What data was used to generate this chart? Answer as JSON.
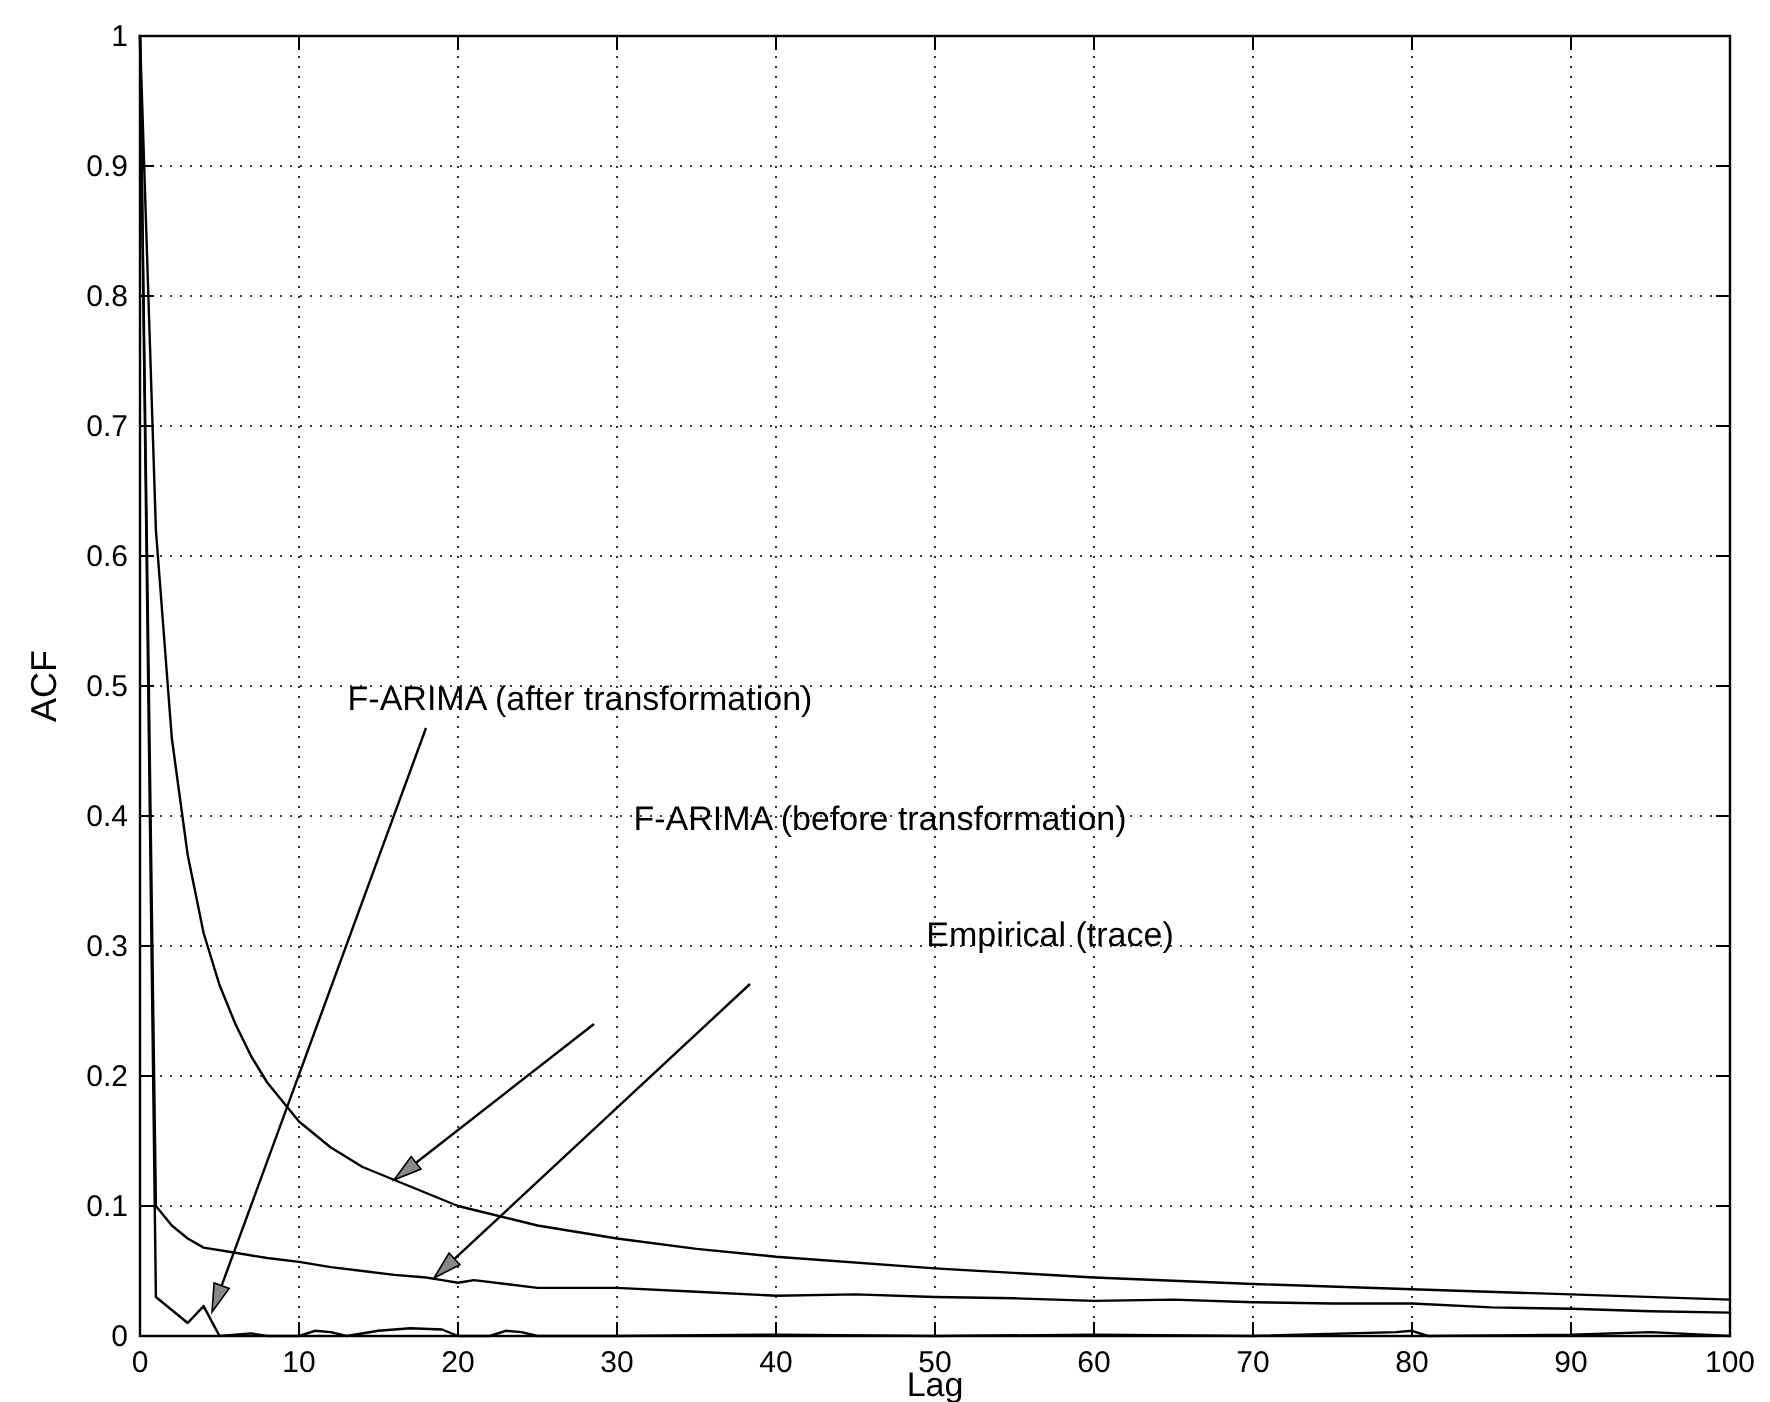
{
  "chart_data": {
    "type": "line",
    "xlabel": "Lag",
    "ylabel": "ACF",
    "xlim": [
      0,
      100
    ],
    "ylim": [
      0,
      1
    ],
    "xticks": [
      0,
      10,
      20,
      30,
      40,
      50,
      60,
      70,
      80,
      90,
      100
    ],
    "yticks": [
      0,
      {
        "value": 0.1,
        "label": "0.1"
      },
      {
        "value": 0.2,
        "label": "0.2"
      },
      {
        "value": 0.3,
        "label": "0.3"
      },
      {
        "value": 0.4,
        "label": "0.4"
      },
      {
        "value": 0.5,
        "label": "0.5"
      },
      {
        "value": 0.6,
        "label": "0.6"
      },
      {
        "value": 0.7,
        "label": "0.7"
      },
      {
        "value": 0.8,
        "label": "0.8"
      },
      {
        "value": 0.9,
        "label": "0.9"
      },
      1
    ],
    "grid": true,
    "line_style": "solid",
    "series": [
      {
        "color": "#000000",
        "x": [
          0,
          1,
          2,
          3,
          4,
          5,
          6,
          7,
          8,
          10,
          12,
          14,
          16,
          18,
          20,
          25,
          30,
          35,
          40,
          50,
          60,
          70,
          80,
          90,
          100
        ],
        "values": [
          1,
          0.62,
          0.46,
          0.37,
          0.31,
          0.27,
          0.24,
          0.215,
          0.195,
          0.165,
          0.145,
          0.13,
          0.12,
          0.11,
          0.1,
          0.085,
          0.075,
          0.067,
          0.061,
          0.052,
          0.045,
          0.04,
          0.036,
          0.032,
          0.028
        ]
      },
      {
        "color": "#000000",
        "x": [
          0,
          1,
          2,
          3,
          4,
          6,
          8,
          10,
          12,
          14,
          16,
          18,
          19,
          20,
          21,
          25,
          30,
          35,
          40,
          45,
          50,
          55,
          60,
          65,
          70,
          75,
          80,
          85,
          90,
          95,
          100
        ],
        "values": [
          1,
          0.1,
          0.085,
          0.075,
          0.068,
          0.064,
          0.06,
          0.057,
          0.053,
          0.05,
          0.047,
          0.045,
          0.043,
          0.041,
          0.043,
          0.037,
          0.037,
          0.034,
          0.031,
          0.032,
          0.03,
          0.029,
          0.027,
          0.028,
          0.026,
          0.025,
          0.025,
          0.022,
          0.021,
          0.019,
          0.018
        ]
      },
      {
        "color": "#000000",
        "x": [
          0,
          1,
          2,
          3,
          4,
          5,
          7,
          8,
          10,
          11,
          12,
          13,
          15,
          17,
          19,
          20,
          22,
          23,
          24,
          25,
          30,
          40,
          50,
          60,
          70,
          79,
          80,
          81,
          90,
          95,
          100
        ],
        "values": [
          1,
          0.03,
          0.02,
          0.01,
          0.023,
          0,
          0.002,
          0,
          0,
          0.004,
          0.003,
          0,
          0.004,
          0.006,
          0.005,
          0,
          0,
          0.004,
          0.003,
          0,
          0,
          0.001,
          0,
          0.001,
          0,
          0.003,
          0.004,
          0,
          0.001,
          0.003,
          0
        ]
      }
    ],
    "annotations": [
      "F-ARIMA (after transformation)",
      "F-ARIMA (before transformation)",
      "Empirical (trace)"
    ]
  }
}
